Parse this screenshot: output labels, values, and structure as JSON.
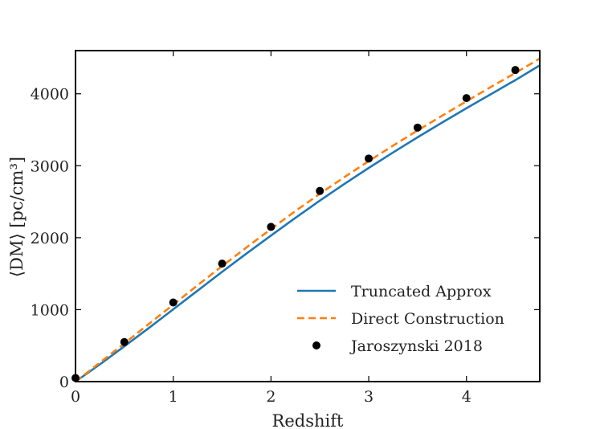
{
  "chart_data": {
    "type": "line",
    "title": "",
    "xlabel": "Redshift",
    "ylabel": "⟨DM⟩ [pc/cm³]",
    "xlim": [
      0,
      4.75
    ],
    "ylim": [
      0,
      4600
    ],
    "x_ticks": [
      0,
      1,
      2,
      3,
      4
    ],
    "x_tick_labels": [
      "0",
      "1",
      "2",
      "3",
      "4"
    ],
    "y_ticks": [
      0,
      1000,
      2000,
      3000,
      4000
    ],
    "y_tick_labels": [
      "0",
      "1000",
      "2000",
      "3000",
      "4000"
    ],
    "grid": false,
    "legend_position": "lower-right",
    "series": [
      {
        "name": "Truncated Approx",
        "kind": "line",
        "style": "solid",
        "color": "#1f77b4",
        "x": [
          0,
          0.25,
          0.5,
          0.75,
          1.0,
          1.25,
          1.5,
          1.75,
          2.0,
          2.25,
          2.5,
          2.75,
          3.0,
          3.25,
          3.5,
          3.75,
          4.0,
          4.25,
          4.5,
          4.75
        ],
        "y": [
          0,
          240,
          490,
          745,
          1005,
          1265,
          1525,
          1780,
          2030,
          2275,
          2515,
          2745,
          2970,
          3185,
          3395,
          3600,
          3800,
          3995,
          4190,
          4395
        ]
      },
      {
        "name": "Direct Construction",
        "kind": "line",
        "style": "dashed",
        "color": "#ff7f0e",
        "x": [
          0,
          0.25,
          0.5,
          0.75,
          1.0,
          1.25,
          1.5,
          1.75,
          2.0,
          2.25,
          2.5,
          2.75,
          3.0,
          3.25,
          3.5,
          3.75,
          4.0,
          4.25,
          4.5,
          4.75
        ],
        "y": [
          0,
          265,
          530,
          800,
          1070,
          1340,
          1605,
          1865,
          2120,
          2370,
          2610,
          2840,
          3065,
          3280,
          3490,
          3695,
          3895,
          4095,
          4290,
          4490
        ]
      },
      {
        "name": "Jaroszynski 2018",
        "kind": "scatter",
        "color": "#000000",
        "x": [
          0,
          0.5,
          1.0,
          1.5,
          2.0,
          2.5,
          3.0,
          3.5,
          4.0,
          4.5
        ],
        "y": [
          50,
          550,
          1100,
          1640,
          2150,
          2650,
          3100,
          3530,
          3940,
          4330
        ]
      }
    ]
  }
}
